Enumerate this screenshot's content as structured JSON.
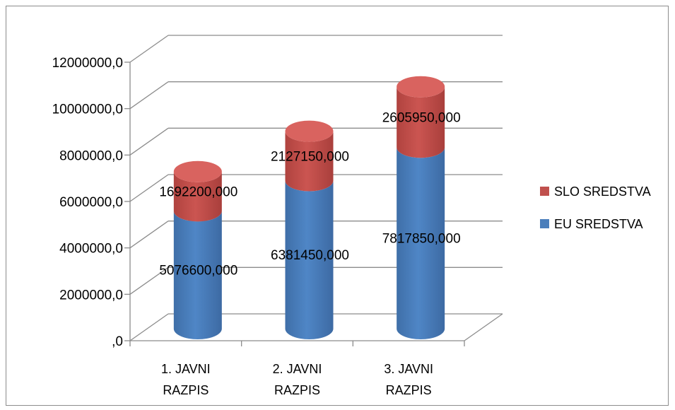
{
  "chart_data": {
    "type": "bar",
    "style": "3d-stacked-cylinder",
    "title": "",
    "xlabel": "",
    "ylabel": "",
    "categories": [
      [
        "1. JAVNI",
        "RAZPIS"
      ],
      [
        "2. JAVNI",
        "RAZPIS"
      ],
      [
        "3. JAVNI",
        "RAZPIS"
      ]
    ],
    "series": [
      {
        "name": "EU SREDSTVA",
        "color": "#4a7ebb",
        "values": [
          5076600,
          6381450,
          7817850
        ],
        "labels": [
          "5076600,000",
          "6381450,000",
          "7817850,000"
        ]
      },
      {
        "name": "SLO SREDSTVA",
        "color": "#c0504d",
        "values": [
          1692200,
          2127150,
          2605950
        ],
        "labels": [
          "1692200,000",
          "2127150,000",
          "2605950,000"
        ]
      }
    ],
    "ylim": [
      0,
      12000000
    ],
    "yticks": [
      0,
      2000000,
      4000000,
      6000000,
      8000000,
      10000000,
      12000000
    ],
    "ytick_labels": [
      ",0",
      "2000000,0",
      "4000000,0",
      "6000000,0",
      "8000000,0",
      "10000000,0",
      "12000000,0"
    ],
    "grid": true,
    "legend_position": "right",
    "legend_order": [
      "SLO SREDSTVA",
      "EU SREDSTVA"
    ]
  }
}
